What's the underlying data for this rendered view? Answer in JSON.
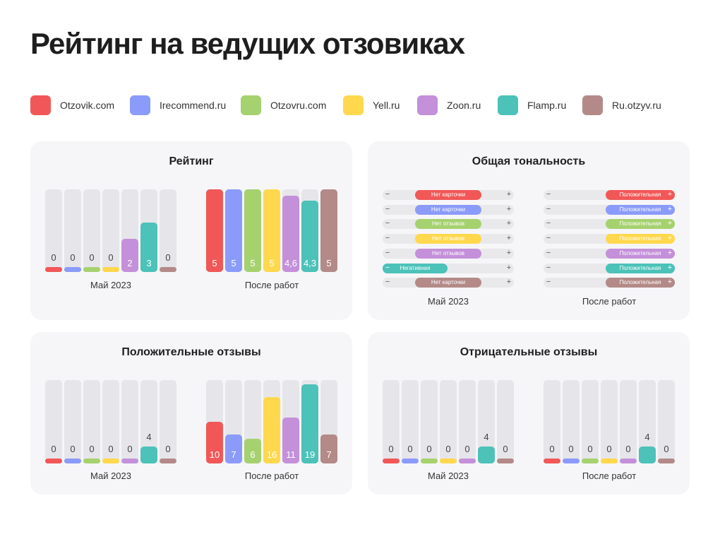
{
  "title": "Рейтинг на ведущих отзовиках",
  "legend": [
    {
      "name": "Otzovik.com",
      "color": "#f25757"
    },
    {
      "name": "Irecommend.ru",
      "color": "#8b9bfa"
    },
    {
      "name": "Otzovru.com",
      "color": "#a6d16f"
    },
    {
      "name": "Yell.ru",
      "color": "#ffd84d"
    },
    {
      "name": "Zoon.ru",
      "color": "#c390d9"
    },
    {
      "name": "Flamp.ru",
      "color": "#4cc2b9"
    },
    {
      "name": "Ru.otzyv.ru",
      "color": "#b38a88"
    }
  ],
  "panels": {
    "rating": {
      "title": "Рейтинг"
    },
    "tonality": {
      "title": "Общая тональность"
    },
    "positive": {
      "title": "Положительные отзывы"
    },
    "negative": {
      "title": "Отрицательные отзывы"
    }
  },
  "chart_data": [
    {
      "type": "bar",
      "title": "Рейтинг",
      "categories": [
        "Otzovik.com",
        "Irecommend.ru",
        "Otzovru.com",
        "Yell.ru",
        "Zoon.ru",
        "Flamp.ru",
        "Ru.otzyv.ru"
      ],
      "ylim": [
        0,
        5
      ],
      "groups": [
        {
          "label": "Май 2023",
          "values": [
            0,
            0,
            0,
            0,
            2,
            3,
            0
          ],
          "value_labels": [
            "0",
            "0",
            "0",
            "0",
            "2",
            "3",
            "0"
          ]
        },
        {
          "label": "После работ",
          "values": [
            5,
            5,
            5,
            5,
            4.6,
            4.3,
            5
          ],
          "value_labels": [
            "5",
            "5",
            "5",
            "5",
            "4,6",
            "4,3",
            "5"
          ]
        }
      ]
    },
    {
      "type": "bar",
      "title": "Положительные отзывы",
      "categories": [
        "Otzovik.com",
        "Irecommend.ru",
        "Otzovru.com",
        "Yell.ru",
        "Zoon.ru",
        "Flamp.ru",
        "Ru.otzyv.ru"
      ],
      "ylim": [
        0,
        20
      ],
      "groups": [
        {
          "label": "Май 2023",
          "values": [
            0,
            0,
            0,
            0,
            0,
            4,
            0
          ],
          "value_labels": [
            "0",
            "0",
            "0",
            "0",
            "0",
            "4",
            "0"
          ]
        },
        {
          "label": "После работ",
          "values": [
            10,
            7,
            6,
            16,
            11,
            19,
            7
          ],
          "value_labels": [
            "10",
            "7",
            "6",
            "16",
            "11",
            "19",
            "7"
          ]
        }
      ]
    },
    {
      "type": "bar",
      "title": "Отрицательные отзывы",
      "categories": [
        "Otzovik.com",
        "Irecommend.ru",
        "Otzovru.com",
        "Yell.ru",
        "Zoon.ru",
        "Flamp.ru",
        "Ru.otzyv.ru"
      ],
      "ylim": [
        0,
        20
      ],
      "groups": [
        {
          "label": "Май 2023",
          "values": [
            0,
            0,
            0,
            0,
            0,
            4,
            0
          ],
          "value_labels": [
            "0",
            "0",
            "0",
            "0",
            "0",
            "4",
            "0"
          ]
        },
        {
          "label": "После работ",
          "values": [
            0,
            0,
            0,
            0,
            0,
            4,
            0
          ],
          "value_labels": [
            "0",
            "0",
            "0",
            "0",
            "0",
            "4",
            "0"
          ]
        }
      ]
    },
    {
      "type": "table",
      "title": "Общая тональность",
      "categories": [
        "Otzovik.com",
        "Irecommend.ru",
        "Otzovru.com",
        "Yell.ru",
        "Zoon.ru",
        "Flamp.ru",
        "Ru.otzyv.ru"
      ],
      "groups": [
        {
          "label": "Май 2023",
          "values": [
            "Нет карточки",
            "Нет карточки",
            "Нет отзывов",
            "Нет отзывов",
            "Нет отзывов",
            "Негативная",
            "Нет карточки"
          ]
        },
        {
          "label": "После работ",
          "values": [
            "Положительная",
            "Положительная",
            "Положительная",
            "Положительная",
            "Положительная",
            "Положительная",
            "Положительная"
          ]
        }
      ],
      "scale_minus": "−",
      "scale_plus": "+"
    }
  ]
}
